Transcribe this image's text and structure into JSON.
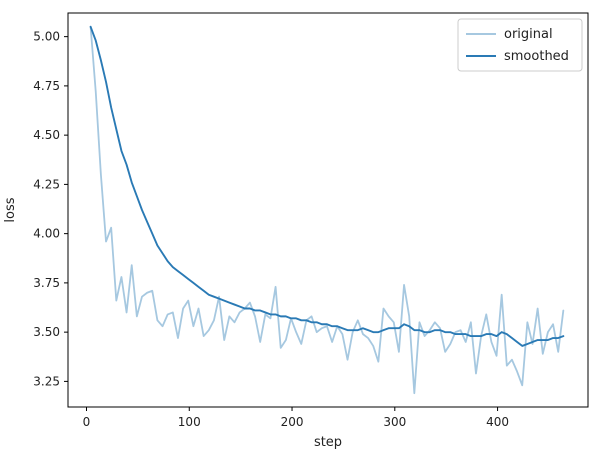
{
  "chart_data": {
    "type": "line",
    "title": "",
    "xlabel": "step",
    "ylabel": "loss",
    "xlim": [
      -18,
      488
    ],
    "ylim": [
      3.12,
      5.12
    ],
    "grid": false,
    "legend_position": "top-right",
    "xticks": [
      0,
      100,
      200,
      300,
      400
    ],
    "yticks": [
      3.25,
      3.5,
      3.75,
      4.0,
      4.25,
      4.5,
      4.75,
      5.0
    ],
    "ytick_labels": [
      "3.25",
      "3.50",
      "3.75",
      "4.00",
      "4.25",
      "4.50",
      "4.75",
      "5.00"
    ],
    "x": [
      4,
      9,
      14,
      19,
      24,
      29,
      34,
      39,
      44,
      49,
      54,
      59,
      64,
      69,
      74,
      79,
      84,
      89,
      94,
      99,
      104,
      109,
      114,
      119,
      124,
      129,
      134,
      139,
      144,
      149,
      154,
      159,
      164,
      169,
      174,
      179,
      184,
      189,
      194,
      199,
      204,
      209,
      214,
      219,
      224,
      229,
      234,
      239,
      244,
      249,
      254,
      259,
      264,
      269,
      274,
      279,
      284,
      289,
      294,
      299,
      304,
      309,
      314,
      319,
      324,
      329,
      334,
      339,
      344,
      349,
      354,
      359,
      364,
      369,
      374,
      379,
      384,
      389,
      394,
      399,
      404,
      409,
      414,
      419,
      424,
      429,
      434,
      439,
      444,
      449,
      454,
      459,
      464
    ],
    "series": [
      {
        "name": "original",
        "color": "#a6c8e0",
        "values": [
          5.05,
          4.72,
          4.3,
          3.96,
          4.03,
          3.66,
          3.78,
          3.6,
          3.84,
          3.58,
          3.68,
          3.7,
          3.71,
          3.56,
          3.53,
          3.59,
          3.6,
          3.47,
          3.62,
          3.66,
          3.53,
          3.62,
          3.48,
          3.51,
          3.56,
          3.68,
          3.46,
          3.58,
          3.55,
          3.6,
          3.62,
          3.65,
          3.58,
          3.45,
          3.59,
          3.57,
          3.73,
          3.42,
          3.46,
          3.57,
          3.5,
          3.44,
          3.56,
          3.58,
          3.5,
          3.52,
          3.53,
          3.45,
          3.53,
          3.49,
          3.36,
          3.5,
          3.56,
          3.49,
          3.47,
          3.43,
          3.35,
          3.62,
          3.58,
          3.55,
          3.4,
          3.74,
          3.58,
          3.19,
          3.55,
          3.48,
          3.51,
          3.55,
          3.52,
          3.4,
          3.44,
          3.5,
          3.51,
          3.45,
          3.55,
          3.29,
          3.48,
          3.59,
          3.45,
          3.38,
          3.69,
          3.33,
          3.36,
          3.3,
          3.23,
          3.55,
          3.44,
          3.62,
          3.39,
          3.5,
          3.54,
          3.4,
          3.61
        ]
      },
      {
        "name": "smoothed",
        "color": "#2a7ab5",
        "values": [
          5.05,
          4.98,
          4.88,
          4.77,
          4.64,
          4.53,
          4.42,
          4.35,
          4.26,
          4.19,
          4.12,
          4.06,
          4.0,
          3.94,
          3.9,
          3.86,
          3.83,
          3.81,
          3.79,
          3.77,
          3.75,
          3.73,
          3.71,
          3.69,
          3.68,
          3.67,
          3.66,
          3.65,
          3.64,
          3.63,
          3.62,
          3.62,
          3.61,
          3.61,
          3.6,
          3.59,
          3.59,
          3.58,
          3.58,
          3.57,
          3.57,
          3.56,
          3.56,
          3.55,
          3.55,
          3.54,
          3.54,
          3.53,
          3.53,
          3.52,
          3.51,
          3.51,
          3.51,
          3.52,
          3.51,
          3.5,
          3.5,
          3.51,
          3.52,
          3.52,
          3.52,
          3.54,
          3.53,
          3.51,
          3.51,
          3.5,
          3.5,
          3.51,
          3.51,
          3.5,
          3.5,
          3.49,
          3.49,
          3.49,
          3.48,
          3.48,
          3.48,
          3.49,
          3.49,
          3.48,
          3.5,
          3.49,
          3.47,
          3.45,
          3.43,
          3.44,
          3.45,
          3.46,
          3.46,
          3.46,
          3.47,
          3.47,
          3.48
        ]
      }
    ]
  }
}
